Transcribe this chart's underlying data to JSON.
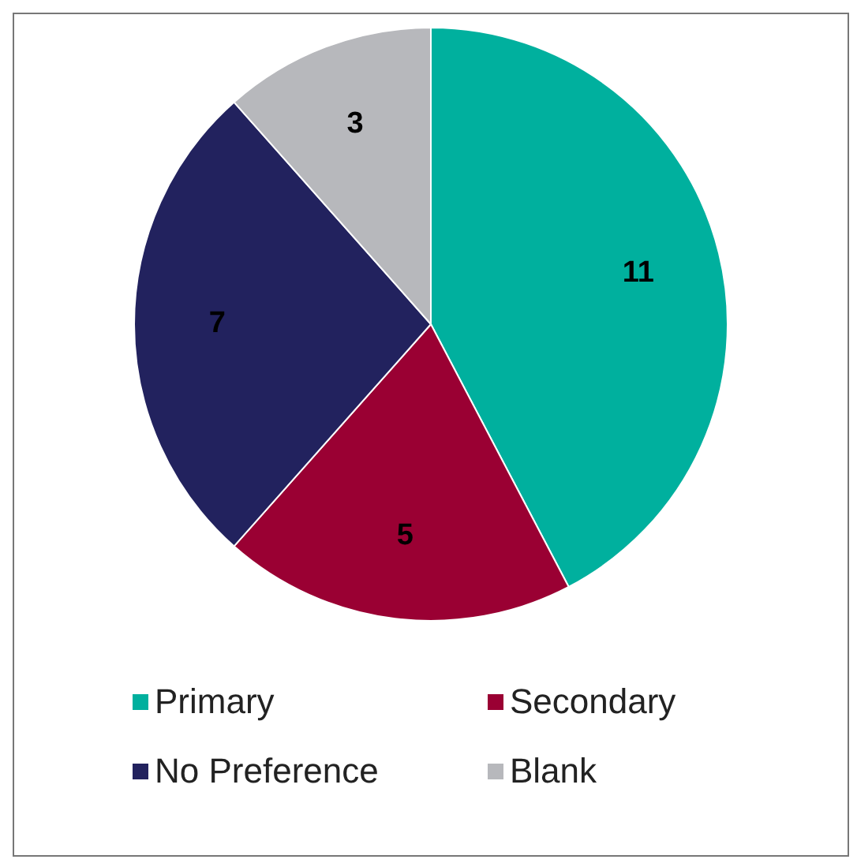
{
  "chart_data": {
    "type": "pie",
    "categories": [
      "Primary",
      "Secondary",
      "No Preference",
      "Blank"
    ],
    "values": [
      11,
      5,
      7,
      3
    ],
    "colors": [
      "#00b09e",
      "#9a0033",
      "#22225e",
      "#b7b8bc"
    ],
    "data_labels": true,
    "legend": "bottom"
  }
}
